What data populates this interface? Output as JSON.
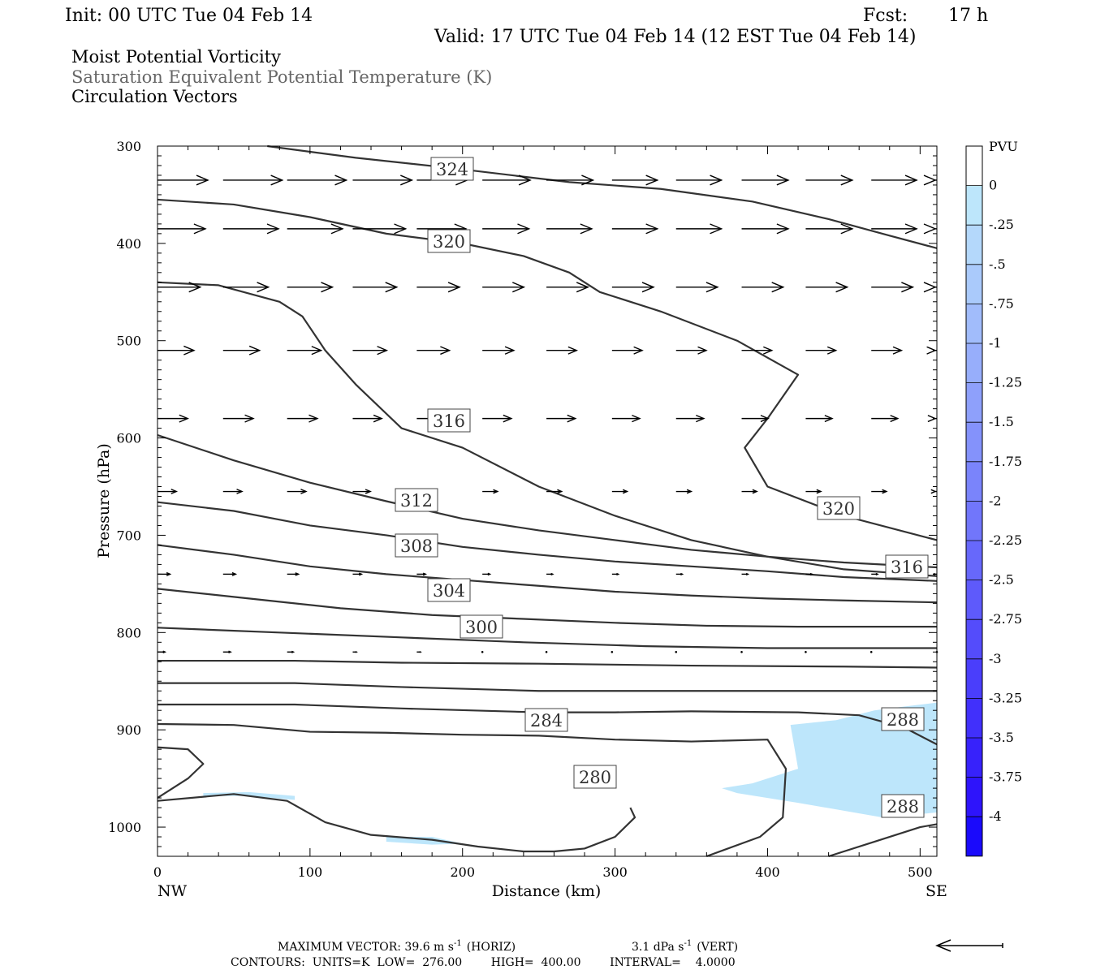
{
  "header": {
    "init": "Init: 00 UTC Tue 04 Feb 14",
    "fcst_label": "Fcst:",
    "fcst_value": "17 h",
    "valid": "Valid: 17 UTC Tue 04 Feb 14 (12 EST Tue 04 Feb 14)"
  },
  "fields": {
    "line1": "Moist Potential Vorticity",
    "line2": "Saturation Equivalent Potential Temperature (K)",
    "line3": "Circulation Vectors"
  },
  "colors": {
    "line1": "#000000",
    "line2": "#666666",
    "line3": "#000000",
    "contour": "#333333",
    "mpv_shade": "#bde6fb"
  },
  "footer": {
    "max_vector": "MAXIMUM VECTOR:  39.6 m s",
    "horiz": "(HORIZ)",
    "vert_value": "3.1 dPa s",
    "vert": "(VERT)",
    "exp": "-1",
    "contours": "CONTOURS:  UNITS=K  LOW=  276.00        HIGH=  400.00        INTERVAL=    4.0000"
  },
  "chart_data": {
    "type": "cross-section",
    "xlabel": "Distance (km)",
    "ylabel": "Pressure (hPa)",
    "x_end_left": "NW",
    "x_end_right": "SE",
    "xlim": [
      0,
      511
    ],
    "ylim": [
      1030,
      300
    ],
    "x_ticks": [
      0,
      100,
      200,
      300,
      400,
      500
    ],
    "y_ticks": [
      300,
      400,
      500,
      600,
      700,
      800,
      900,
      1000
    ],
    "colorbar": {
      "unit": "PVU",
      "labels": [
        "0",
        "-.25",
        "-.5",
        "-.75",
        "-1",
        "-1.25",
        "-1.5",
        "-1.75",
        "-2",
        "-2.25",
        "-2.5",
        "-2.75",
        "-3",
        "-3.25",
        "-3.5",
        "-3.75",
        "-4"
      ],
      "colors": [
        "#ffffff",
        "#bde6fb",
        "#b4d8fb",
        "#aacafb",
        "#a1bcfb",
        "#97aefb",
        "#8ea0fb",
        "#8492fb",
        "#7a84fb",
        "#7176fb",
        "#6768fb",
        "#5e5afb",
        "#544cfb",
        "#4a3efb",
        "#4130fb",
        "#3722fb",
        "#2e14fb",
        "#1a0afb"
      ]
    },
    "theta_es_contours": [
      {
        "label": "324",
        "points": [
          [
            72,
            300
          ],
          [
            130,
            312
          ],
          [
            195,
            323
          ],
          [
            270,
            337
          ],
          [
            330,
            344
          ],
          [
            390,
            357
          ],
          [
            440,
            375
          ],
          [
            480,
            392
          ],
          [
            511,
            405
          ]
        ]
      },
      {
        "label": "320",
        "points": [
          [
            0,
            355
          ],
          [
            50,
            360
          ],
          [
            100,
            373
          ],
          [
            150,
            390
          ],
          [
            200,
            400
          ],
          [
            240,
            413
          ],
          [
            270,
            430
          ],
          [
            290,
            450
          ],
          [
            330,
            470
          ],
          [
            380,
            500
          ],
          [
            420,
            535
          ],
          [
            400,
            580
          ],
          [
            385,
            610
          ],
          [
            400,
            650
          ],
          [
            450,
            680
          ],
          [
            511,
            705
          ]
        ]
      },
      {
        "label": "316",
        "points": [
          [
            0,
            440
          ],
          [
            40,
            443
          ],
          [
            80,
            460
          ],
          [
            95,
            475
          ],
          [
            110,
            510
          ],
          [
            130,
            545
          ],
          [
            160,
            590
          ],
          [
            200,
            610
          ],
          [
            250,
            650
          ],
          [
            300,
            680
          ],
          [
            350,
            705
          ],
          [
            400,
            722
          ],
          [
            450,
            735
          ],
          [
            511,
            742
          ]
        ]
      },
      {
        "label": "312",
        "points": [
          [
            0,
            597
          ],
          [
            50,
            623
          ],
          [
            100,
            646
          ],
          [
            150,
            665
          ],
          [
            200,
            683
          ],
          [
            250,
            695
          ],
          [
            300,
            705
          ],
          [
            350,
            715
          ],
          [
            400,
            722
          ],
          [
            450,
            728
          ],
          [
            511,
            733
          ]
        ]
      },
      {
        "label": "308",
        "points": [
          [
            0,
            666
          ],
          [
            50,
            675
          ],
          [
            100,
            690
          ],
          [
            150,
            700
          ],
          [
            200,
            712
          ],
          [
            250,
            720
          ],
          [
            300,
            727
          ],
          [
            350,
            732
          ],
          [
            400,
            737
          ],
          [
            450,
            743
          ],
          [
            511,
            747
          ]
        ]
      },
      {
        "label": "304",
        "points": [
          [
            0,
            710
          ],
          [
            50,
            720
          ],
          [
            100,
            732
          ],
          [
            150,
            740
          ],
          [
            200,
            746
          ],
          [
            250,
            752
          ],
          [
            300,
            758
          ],
          [
            350,
            762
          ],
          [
            400,
            765
          ],
          [
            450,
            767
          ],
          [
            511,
            769
          ]
        ]
      },
      {
        "label": "300",
        "points": [
          [
            0,
            755
          ],
          [
            60,
            765
          ],
          [
            120,
            775
          ],
          [
            180,
            782
          ],
          [
            240,
            786
          ],
          [
            300,
            790
          ],
          [
            360,
            793
          ],
          [
            420,
            794
          ],
          [
            511,
            794
          ]
        ]
      },
      {
        "label": "",
        "points": [
          [
            0,
            795
          ],
          [
            80,
            800
          ],
          [
            160,
            805
          ],
          [
            240,
            810
          ],
          [
            320,
            814
          ],
          [
            400,
            816
          ],
          [
            511,
            816
          ]
        ]
      },
      {
        "label": "",
        "points": [
          [
            0,
            829
          ],
          [
            90,
            829
          ],
          [
            160,
            831
          ],
          [
            250,
            832
          ],
          [
            350,
            834
          ],
          [
            450,
            835
          ],
          [
            511,
            836
          ]
        ]
      },
      {
        "label": "",
        "points": [
          [
            0,
            852
          ],
          [
            90,
            852
          ],
          [
            160,
            856
          ],
          [
            250,
            860
          ],
          [
            350,
            860
          ],
          [
            450,
            860
          ],
          [
            511,
            860
          ]
        ]
      },
      {
        "label": "",
        "points": [
          [
            0,
            874
          ],
          [
            90,
            874
          ],
          [
            160,
            878
          ],
          [
            250,
            882
          ],
          [
            300,
            882
          ],
          [
            350,
            881
          ],
          [
            420,
            882
          ],
          [
            460,
            885
          ],
          [
            490,
            898
          ],
          [
            511,
            915
          ]
        ]
      },
      {
        "label": "284",
        "points": [
          [
            0,
            894
          ],
          [
            50,
            895
          ],
          [
            100,
            902
          ],
          [
            150,
            903
          ],
          [
            200,
            905
          ],
          [
            250,
            906
          ],
          [
            300,
            910
          ],
          [
            350,
            912
          ],
          [
            400,
            910
          ],
          [
            412,
            940
          ],
          [
            410,
            990
          ],
          [
            395,
            1010
          ],
          [
            360,
            1030
          ]
        ]
      },
      {
        "label": "280",
        "points": [
          [
            0,
            918
          ],
          [
            20,
            920
          ],
          [
            30,
            935
          ],
          [
            20,
            950
          ],
          [
            0,
            970
          ]
        ]
      },
      {
        "label": "280",
        "points": [
          [
            0,
            973
          ],
          [
            50,
            966
          ],
          [
            85,
            973
          ],
          [
            110,
            995
          ],
          [
            140,
            1008
          ],
          [
            180,
            1013
          ],
          [
            210,
            1020
          ],
          [
            240,
            1025
          ],
          [
            260,
            1025
          ],
          [
            280,
            1022
          ],
          [
            300,
            1010
          ],
          [
            313,
            990
          ],
          [
            310,
            980
          ]
        ]
      },
      {
        "label": "288",
        "points": [
          [
            440,
            1030
          ],
          [
            470,
            1015
          ],
          [
            500,
            1000
          ],
          [
            511,
            997
          ]
        ]
      }
    ],
    "mpv_shaded_regions": [
      {
        "value_range": [
          -0.25,
          0
        ],
        "points": [
          [
            415,
            895
          ],
          [
            445,
            890
          ],
          [
            470,
            880
          ],
          [
            490,
            876
          ],
          [
            511,
            872
          ],
          [
            511,
            985
          ],
          [
            475,
            990
          ],
          [
            420,
            975
          ],
          [
            380,
            965
          ],
          [
            370,
            960
          ],
          [
            390,
            955
          ],
          [
            420,
            940
          ]
        ]
      },
      {
        "value_range": [
          -0.25,
          0
        ],
        "points": [
          [
            30,
            965
          ],
          [
            60,
            964
          ],
          [
            90,
            968
          ],
          [
            90,
            972
          ],
          [
            60,
            968
          ],
          [
            30,
            968
          ]
        ]
      },
      {
        "value_range": [
          -0.25,
          0
        ],
        "points": [
          [
            150,
            1010
          ],
          [
            180,
            1010
          ],
          [
            200,
            1017
          ],
          [
            180,
            1018
          ],
          [
            150,
            1015
          ]
        ]
      }
    ],
    "vector_rows": [
      {
        "p": 335,
        "u": [
          [
            0,
            40
          ],
          [
            43,
            47
          ],
          [
            85,
            47
          ],
          [
            128,
            47
          ],
          [
            170,
            40
          ],
          [
            213,
            38
          ],
          [
            255,
            37
          ],
          [
            298,
            36
          ],
          [
            340,
            36
          ],
          [
            383,
            37
          ],
          [
            425,
            37
          ],
          [
            468,
            36
          ],
          [
            511,
            36
          ]
        ]
      },
      {
        "p": 385,
        "u": [
          [
            0,
            38
          ],
          [
            43,
            44
          ],
          [
            85,
            44
          ],
          [
            128,
            42
          ],
          [
            170,
            39
          ],
          [
            213,
            37
          ],
          [
            255,
            36
          ],
          [
            298,
            36
          ],
          [
            340,
            36
          ],
          [
            383,
            37
          ],
          [
            425,
            37
          ],
          [
            468,
            36
          ],
          [
            511,
            36
          ]
        ]
      },
      {
        "p": 445,
        "u": [
          [
            0,
            34
          ],
          [
            43,
            36
          ],
          [
            85,
            36
          ],
          [
            128,
            35
          ],
          [
            170,
            34
          ],
          [
            213,
            33
          ],
          [
            255,
            33
          ],
          [
            298,
            33
          ],
          [
            340,
            33
          ],
          [
            383,
            33
          ],
          [
            425,
            33
          ],
          [
            468,
            33
          ],
          [
            511,
            33
          ]
        ]
      },
      {
        "p": 510,
        "u": [
          [
            0,
            29
          ],
          [
            43,
            29
          ],
          [
            85,
            27
          ],
          [
            128,
            27
          ],
          [
            170,
            26
          ],
          [
            213,
            25
          ],
          [
            255,
            24
          ],
          [
            298,
            24
          ],
          [
            340,
            24
          ],
          [
            383,
            24
          ],
          [
            425,
            24
          ],
          [
            468,
            24
          ],
          [
            511,
            24
          ]
        ]
      },
      {
        "p": 580,
        "u": [
          [
            0,
            24
          ],
          [
            43,
            24
          ],
          [
            85,
            24
          ],
          [
            128,
            23
          ],
          [
            170,
            23
          ],
          [
            213,
            23
          ],
          [
            255,
            23
          ],
          [
            298,
            22
          ],
          [
            340,
            22
          ],
          [
            383,
            21
          ],
          [
            425,
            21
          ],
          [
            468,
            21
          ],
          [
            511,
            21
          ]
        ]
      },
      {
        "p": 655,
        "u": [
          [
            0,
            15
          ],
          [
            43,
            15
          ],
          [
            85,
            15
          ],
          [
            128,
            14
          ],
          [
            170,
            12
          ],
          [
            213,
            12
          ],
          [
            255,
            12
          ],
          [
            298,
            12
          ],
          [
            340,
            12
          ],
          [
            383,
            12
          ],
          [
            425,
            12
          ],
          [
            468,
            12
          ],
          [
            511,
            12
          ]
        ]
      },
      {
        "p": 740,
        "u": [
          [
            0,
            10
          ],
          [
            43,
            10
          ],
          [
            85,
            9
          ],
          [
            128,
            7
          ],
          [
            170,
            7
          ],
          [
            213,
            6
          ],
          [
            255,
            5
          ],
          [
            298,
            5
          ],
          [
            340,
            5
          ],
          [
            383,
            5
          ],
          [
            425,
            5
          ],
          [
            468,
            5
          ],
          [
            511,
            5
          ]
        ]
      },
      {
        "p": 820,
        "u": [
          [
            0,
            6
          ],
          [
            43,
            6
          ],
          [
            85,
            5
          ],
          [
            128,
            3
          ],
          [
            170,
            3
          ],
          [
            213,
            2
          ],
          [
            255,
            2
          ],
          [
            298,
            2
          ],
          [
            340,
            2
          ],
          [
            383,
            2
          ],
          [
            425,
            2
          ],
          [
            468,
            2
          ],
          [
            511,
            2
          ]
        ]
      }
    ]
  }
}
